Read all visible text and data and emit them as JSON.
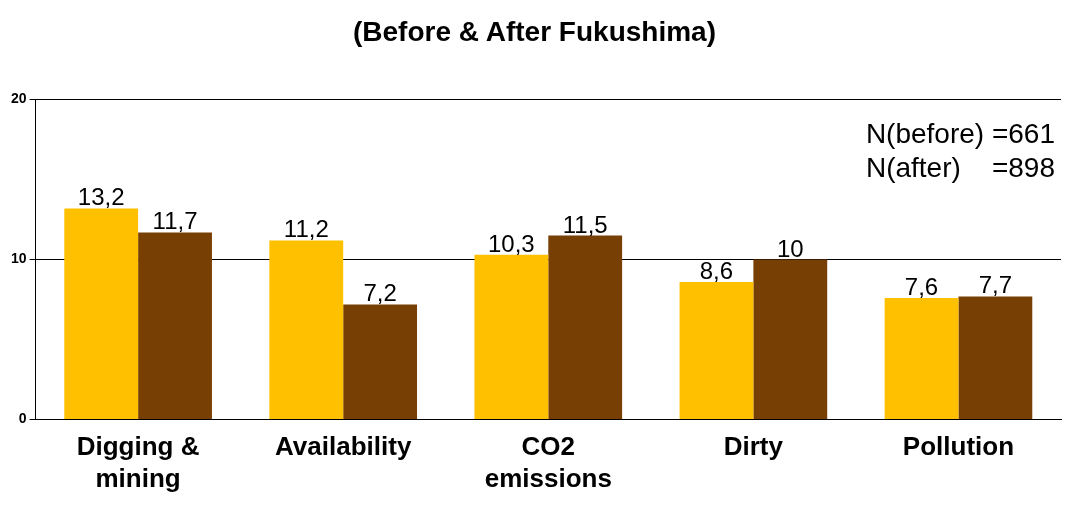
{
  "chart_data": {
    "type": "bar",
    "title": "(Before & After Fukushima)",
    "categories": [
      "Digging & mining",
      "Availability",
      "CO2 emissions",
      "Dirty",
      "Pollution"
    ],
    "series": [
      {
        "color": "#ffc000",
        "values": [
          13.2,
          11.2,
          10.3,
          8.6,
          7.6
        ],
        "value_labels": [
          "13,2",
          "11,2",
          "10,3",
          "8,6",
          "7,6"
        ]
      },
      {
        "color": "#783f04",
        "values": [
          11.7,
          7.2,
          11.5,
          10,
          7.7
        ],
        "value_labels": [
          "11,7",
          "7,2",
          "11,5",
          "10",
          "7,7"
        ]
      }
    ],
    "ylim": [
      0,
      20
    ],
    "yticks": [
      0,
      10,
      20
    ],
    "grid": "y",
    "legend": false,
    "annotations": [
      "N(before) =661",
      "N(after)    =898"
    ]
  }
}
